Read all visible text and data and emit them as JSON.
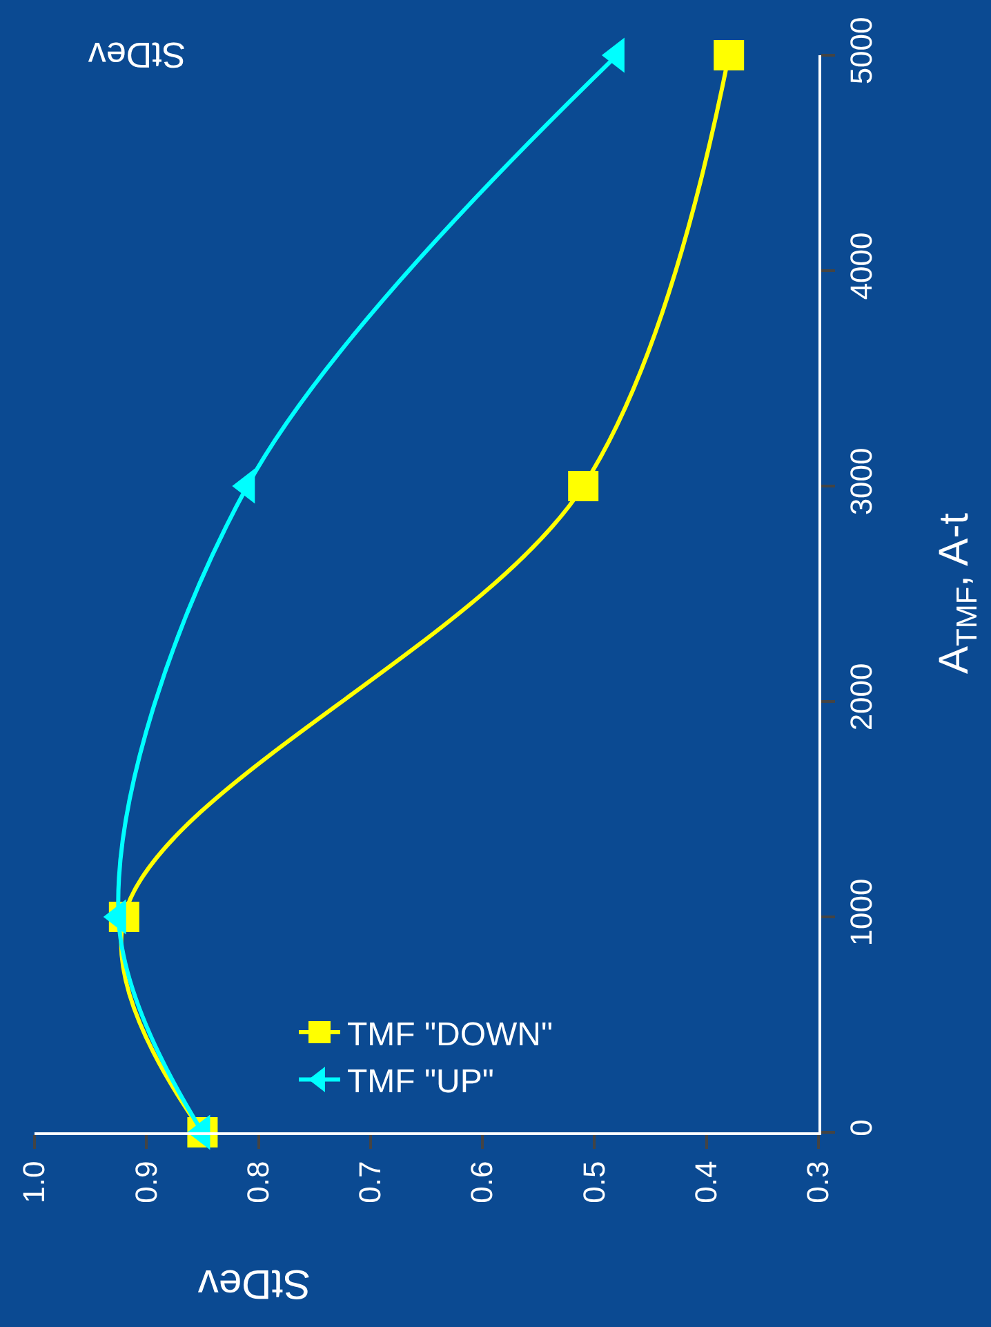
{
  "chart_data": {
    "type": "line",
    "xlabel": "StDev",
    "ylabel": "A$_{TMF}$, A-t",
    "series": [
      {
        "name": "TMF \"DOWN\"",
        "color": "#ffff00",
        "marker": "square",
        "x": [
          0.85,
          0.92,
          0.51,
          0.38
        ],
        "values": [
          0,
          1000,
          3000,
          5000
        ]
      },
      {
        "name": "TMF \"UP\"",
        "color": "#00ffff",
        "marker": "triangle",
        "x": [
          0.85,
          0.925,
          0.81,
          0.48
        ],
        "values": [
          0,
          1000,
          3000,
          5000
        ]
      }
    ],
    "xlim": [
      1.0,
      0.3
    ],
    "xticks": [
      {
        "value": 0.3,
        "label": "0.3"
      },
      {
        "value": 0.4,
        "label": "0.4"
      },
      {
        "value": 0.5,
        "label": "0.5"
      },
      {
        "value": 0.6,
        "label": "0.6"
      },
      {
        "value": 0.7,
        "label": "0.7"
      },
      {
        "value": 0.8,
        "label": "0.8"
      },
      {
        "value": 0.9,
        "label": "0.9"
      },
      {
        "value": 1.0,
        "label": "1.0"
      }
    ],
    "ylim": [
      0,
      5000
    ],
    "yticks": [
      0,
      1000,
      2000,
      3000,
      4000,
      5000
    ],
    "annotations": [
      "StDev"
    ],
    "legend": "bottom",
    "grid": false,
    "line_style": "solid"
  }
}
